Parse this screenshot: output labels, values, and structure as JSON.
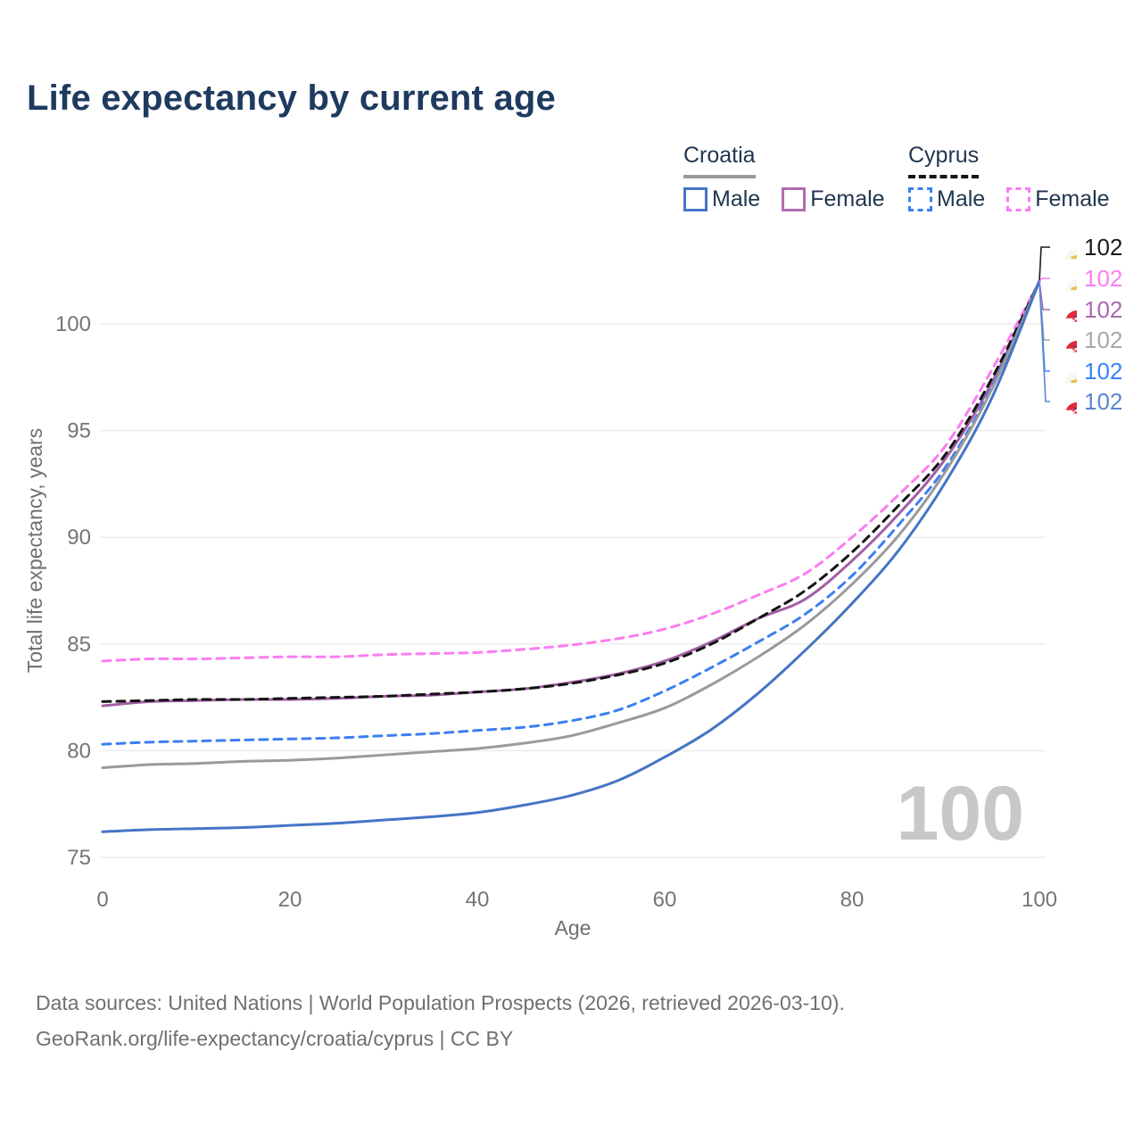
{
  "title": "Life expectancy by current age",
  "legend": {
    "groups": [
      {
        "label": "Croatia",
        "line_style": "solid",
        "underline_color": "#9a9a9a",
        "items": [
          {
            "label": "Male",
            "color": "#4475c5",
            "dashed": false
          },
          {
            "label": "Female",
            "color": "#b06cae",
            "dashed": false
          }
        ]
      },
      {
        "label": "Cyprus",
        "line_style": "dashed",
        "underline_color": "#141414",
        "items": [
          {
            "label": "Male",
            "color": "#3b7ff2",
            "dashed": true
          },
          {
            "label": "Female",
            "color": "#fb7cf2",
            "dashed": true
          }
        ]
      }
    ]
  },
  "chart_data": {
    "type": "line",
    "title": "Life expectancy by current age",
    "xlabel": "Age",
    "ylabel": "Total life expectancy, years",
    "x_ticks": [
      0,
      20,
      40,
      60,
      80,
      100
    ],
    "y_ticks": [
      75,
      80,
      85,
      90,
      95,
      100
    ],
    "xlim": [
      0,
      100
    ],
    "ylim": [
      74.5,
      103
    ],
    "grid": "horizontal",
    "legend_position": "top-right",
    "x": [
      0,
      5,
      10,
      15,
      20,
      25,
      30,
      35,
      40,
      45,
      50,
      55,
      60,
      65,
      70,
      75,
      80,
      85,
      90,
      95,
      100
    ],
    "series": [
      {
        "name": "Croatia Female",
        "country": "Croatia",
        "sex": "female",
        "color": "#a35fa3",
        "dashed": false,
        "values": [
          82.1,
          82.3,
          82.35,
          82.4,
          82.4,
          82.45,
          82.55,
          82.6,
          82.75,
          82.9,
          83.2,
          83.6,
          84.2,
          85.1,
          86.2,
          87.1,
          88.9,
          91.1,
          93.7,
          97.3,
          102
        ]
      },
      {
        "name": "Cyprus Female",
        "country": "Cyprus",
        "sex": "female",
        "color": "#fb7cf2",
        "dashed": true,
        "values": [
          84.2,
          84.3,
          84.3,
          84.35,
          84.4,
          84.4,
          84.5,
          84.55,
          84.6,
          84.75,
          84.95,
          85.25,
          85.7,
          86.4,
          87.3,
          88.3,
          90.0,
          92.0,
          94.3,
          97.9,
          102
        ]
      },
      {
        "name": "Cyprus",
        "country": "Cyprus",
        "sex": "total",
        "color": "#141414",
        "dashed": true,
        "values": [
          82.3,
          82.35,
          82.4,
          82.4,
          82.45,
          82.5,
          82.55,
          82.65,
          82.75,
          82.9,
          83.15,
          83.55,
          84.1,
          85.0,
          86.2,
          87.5,
          89.3,
          91.5,
          93.9,
          97.5,
          102
        ]
      },
      {
        "name": "Cyprus Male",
        "country": "Cyprus",
        "sex": "male",
        "color": "#3b7ff2",
        "dashed": true,
        "values": [
          80.3,
          80.4,
          80.45,
          80.5,
          80.55,
          80.6,
          80.7,
          80.8,
          80.95,
          81.1,
          81.4,
          81.9,
          82.8,
          83.9,
          85.1,
          86.4,
          88.2,
          90.6,
          93.3,
          97.1,
          102
        ]
      },
      {
        "name": "Croatia",
        "country": "Croatia",
        "sex": "total",
        "color": "#9a9a9a",
        "dashed": false,
        "values": [
          79.2,
          79.35,
          79.4,
          79.5,
          79.55,
          79.65,
          79.8,
          79.95,
          80.1,
          80.35,
          80.7,
          81.3,
          82.0,
          83.1,
          84.4,
          85.9,
          87.8,
          90.1,
          93.1,
          97.0,
          102
        ]
      },
      {
        "name": "Croatia Male",
        "country": "Croatia",
        "sex": "male",
        "color": "#4475c5",
        "dashed": false,
        "values": [
          76.2,
          76.3,
          76.35,
          76.4,
          76.5,
          76.6,
          76.75,
          76.9,
          77.1,
          77.45,
          77.9,
          78.6,
          79.7,
          81.0,
          82.7,
          84.7,
          86.9,
          89.4,
          92.6,
          96.6,
          102
        ]
      }
    ],
    "endpoint_labels": [
      {
        "value": "102",
        "series": "Cyprus",
        "color": "#1a1a1a",
        "icon": "cyprus-flag-icon"
      },
      {
        "value": "102",
        "series": "Cyprus Female",
        "color": "#fb7cf2",
        "icon": "cyprus-flag-icon"
      },
      {
        "value": "102",
        "series": "Croatia Female",
        "color": "#aa69b0",
        "icon": "croatia-flag-icon"
      },
      {
        "value": "102",
        "series": "Croatia",
        "color": "#a8a8a8",
        "icon": "croatia-flag-icon"
      },
      {
        "value": "102",
        "series": "Cyprus Male",
        "color": "#3b82f6",
        "icon": "cyprus-flag-icon"
      },
      {
        "value": "102",
        "series": "Croatia Male",
        "color": "#5987cf",
        "icon": "croatia-flag-icon"
      }
    ],
    "watermark": "100"
  },
  "footer": {
    "line1": "Data sources: United Nations | World Population Prospects (2026, retrieved 2026-03-10).",
    "line2": "GeoRank.org/life-expectancy/croatia/cyprus | CC BY"
  }
}
